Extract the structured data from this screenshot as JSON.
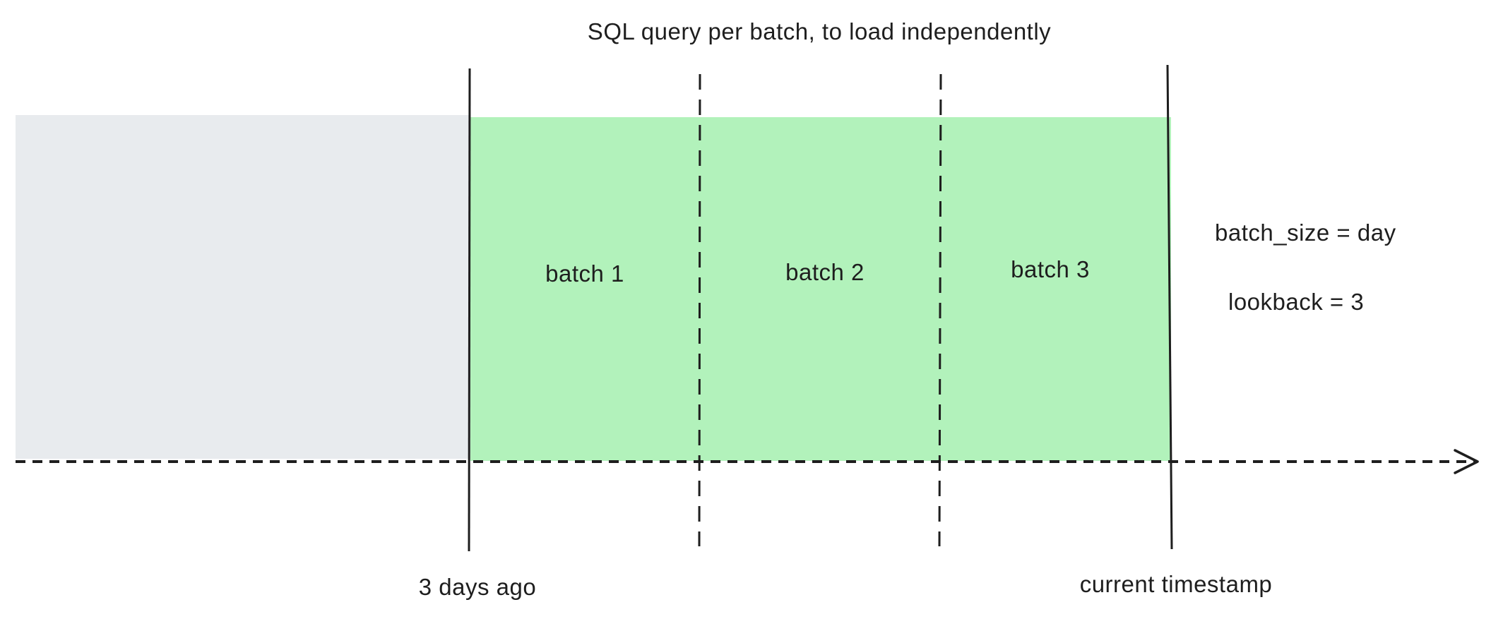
{
  "title": "SQL query per batch, to load independently",
  "batches": [
    {
      "label": "batch 1"
    },
    {
      "label": "batch 2"
    },
    {
      "label": "batch 3"
    }
  ],
  "params": {
    "batch_size": "batch_size = day",
    "lookback": "lookback = 3"
  },
  "axis_labels": {
    "start": "3 days ago",
    "end": "current timestamp"
  },
  "colors": {
    "past_region": "#e8ebee",
    "batch_region": "#b2f2bb",
    "stroke": "#1e1e1e"
  }
}
